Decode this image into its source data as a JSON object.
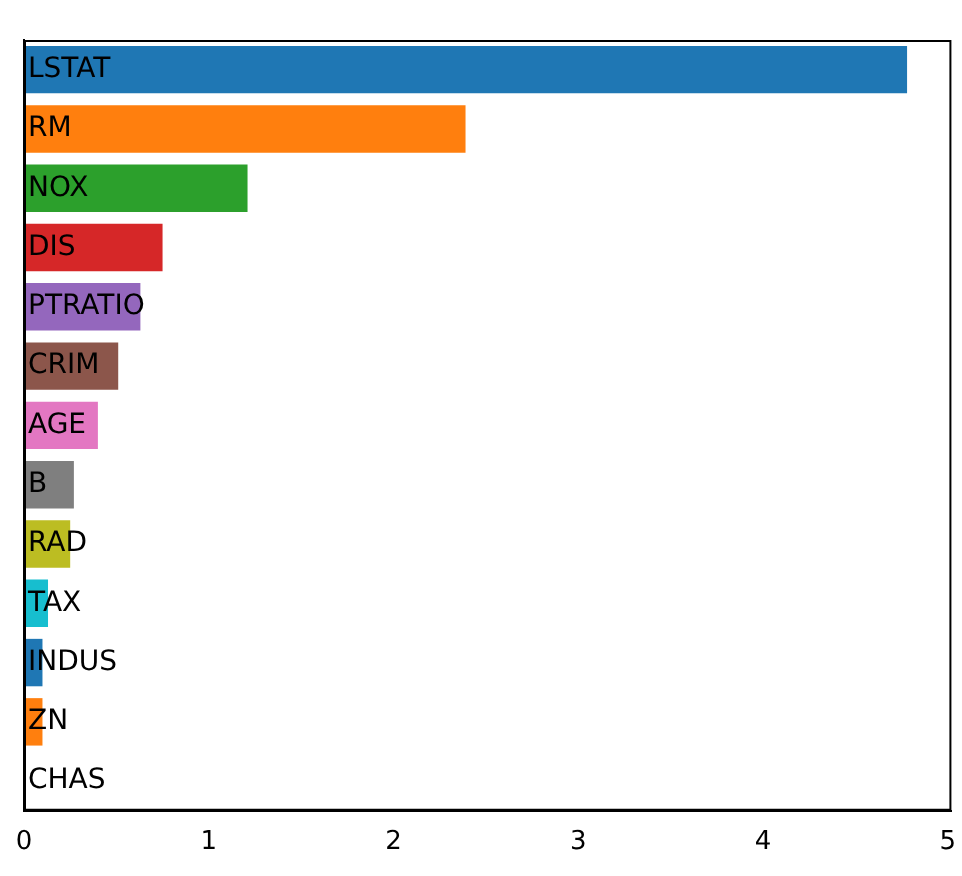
{
  "chart_data": {
    "type": "bar",
    "orientation": "horizontal",
    "categories": [
      "LSTAT",
      "RM",
      "NOX",
      "DIS",
      "PTRATIO",
      "CRIM",
      "AGE",
      "B",
      "RAD",
      "TAX",
      "INDUS",
      "ZN",
      "CHAS"
    ],
    "values": [
      4.78,
      2.39,
      1.21,
      0.75,
      0.63,
      0.51,
      0.4,
      0.27,
      0.25,
      0.13,
      0.1,
      0.1,
      0
    ],
    "colors": [
      "#1f77b4",
      "#ff7f0e",
      "#2ca02c",
      "#d62728",
      "#9467bd",
      "#8c564b",
      "#e377c2",
      "#7f7f7f",
      "#bcbd22",
      "#17becf",
      "#1f77b4",
      "#ff7f0e",
      "#2ca02c"
    ],
    "xlim": [
      0,
      5.02
    ],
    "xticks": [
      0,
      1,
      2,
      3,
      4,
      5
    ],
    "grid": false,
    "legend": false
  }
}
